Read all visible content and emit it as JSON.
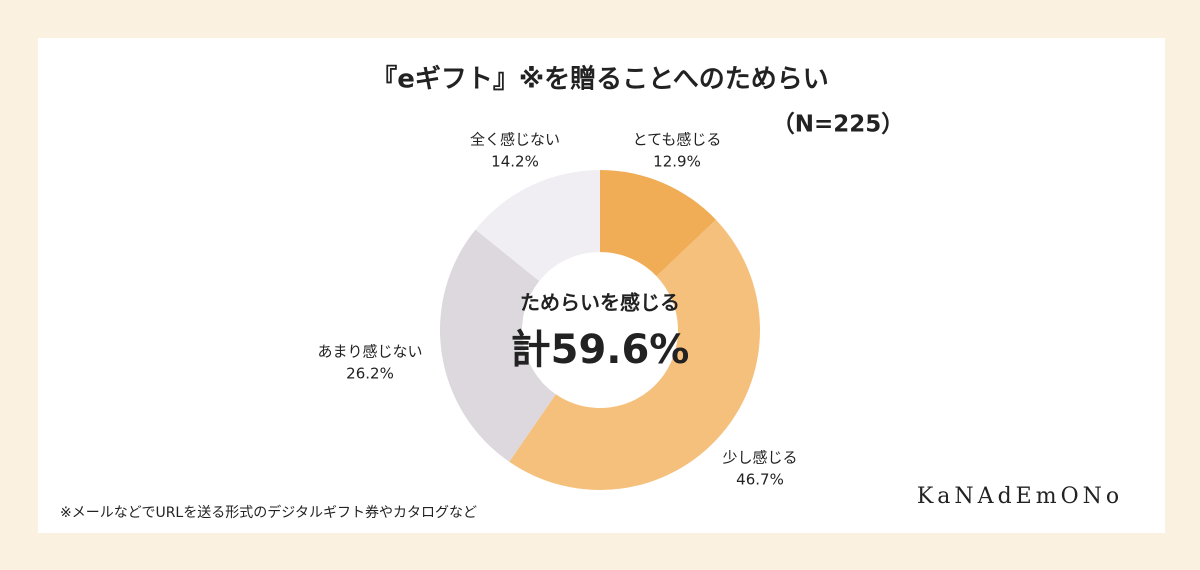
{
  "chart_data": {
    "type": "donut",
    "title": "『eギフト』※を贈ることへのためらい",
    "subtitle": "（N=225）",
    "categories": [
      "とても感じる",
      "少し感じる",
      "あまり感じない",
      "全く感じない"
    ],
    "values": [
      12.9,
      46.7,
      26.2,
      14.2
    ],
    "value_labels": [
      "12.9%",
      "46.7%",
      "26.2%",
      "14.2%"
    ],
    "colors": [
      "#f0ad55",
      "#f5c07c",
      "#dcd8de",
      "#f0eef3"
    ],
    "center_text": "ためらいを感じる",
    "center_total": "計59.6%",
    "footnote": "※メールなどでURLを送る形式のデジタルギフト券やカタログなど",
    "brand": "KaNAdEmONo"
  }
}
